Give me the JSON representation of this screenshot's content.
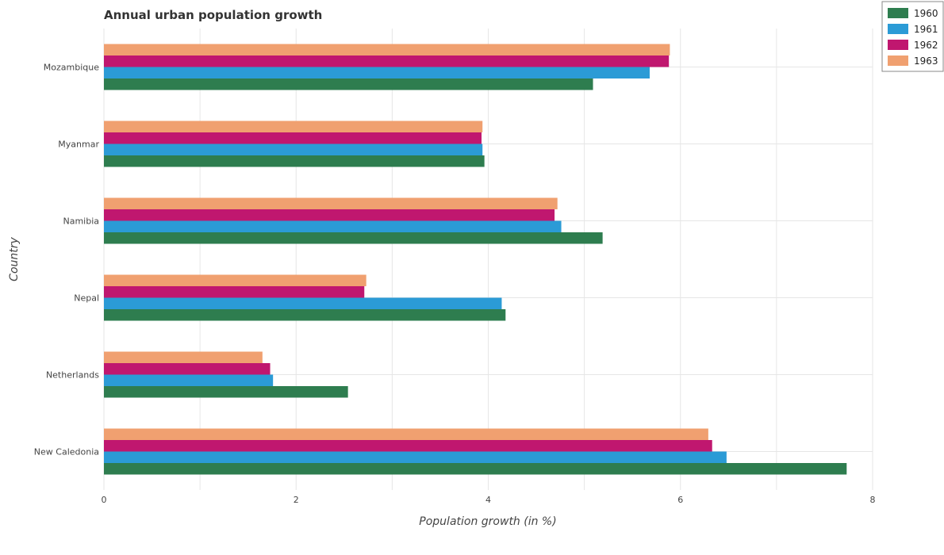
{
  "chart_data": {
    "type": "bar",
    "orientation": "horizontal",
    "title": "Annual urban population growth",
    "xlabel": "Population growth (in %)",
    "ylabel": "Country",
    "xlim": [
      0,
      8
    ],
    "xticks": [
      0,
      2,
      4,
      6,
      8
    ],
    "grid": true,
    "legend_position": "top-right",
    "categories": [
      "Mozambique",
      "Myanmar",
      "Namibia",
      "Nepal",
      "Netherlands",
      "New Caledonia"
    ],
    "series": [
      {
        "name": "1960",
        "color": "#2e7d4f",
        "values": [
          5.09,
          3.96,
          5.19,
          4.18,
          2.54,
          7.73
        ]
      },
      {
        "name": "1961",
        "color": "#2b9bd6",
        "values": [
          5.68,
          3.94,
          4.76,
          4.14,
          1.76,
          6.48
        ]
      },
      {
        "name": "1962",
        "color": "#c0176f",
        "values": [
          5.88,
          3.93,
          4.69,
          2.71,
          1.73,
          6.33
        ]
      },
      {
        "name": "1963",
        "color": "#f0a070",
        "values": [
          5.89,
          3.94,
          4.72,
          2.73,
          1.65,
          6.29
        ]
      }
    ]
  }
}
